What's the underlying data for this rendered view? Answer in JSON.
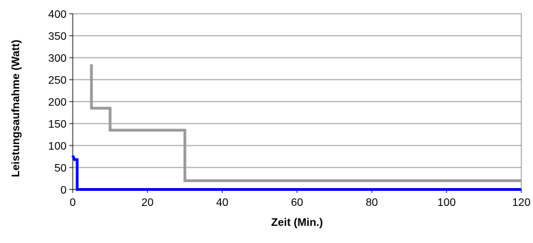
{
  "chart_data": {
    "type": "line",
    "title": "",
    "xlabel": "Zeit (Min.)",
    "ylabel": "Leistungsaufnahme (Watt)",
    "xlim": [
      0,
      120
    ],
    "ylim": [
      0,
      400
    ],
    "xticks": [
      0,
      20,
      40,
      60,
      80,
      100,
      120
    ],
    "yticks": [
      0,
      50,
      100,
      150,
      200,
      250,
      300,
      350,
      400
    ],
    "grid": "horizontal",
    "legend": "none",
    "series": [
      {
        "color": "#999999",
        "step": true,
        "points": [
          [
            5,
            285
          ],
          [
            5,
            185
          ],
          [
            10,
            185
          ],
          [
            10,
            135
          ],
          [
            30,
            135
          ],
          [
            30,
            20
          ],
          [
            120,
            20
          ]
        ]
      },
      {
        "color": "#0000ff",
        "step": true,
        "points": [
          [
            0,
            77
          ],
          [
            0.5,
            68
          ],
          [
            1.2,
            68
          ],
          [
            1.2,
            0
          ],
          [
            120,
            0
          ]
        ]
      }
    ]
  }
}
